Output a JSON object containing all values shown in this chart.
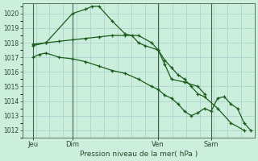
{
  "bg_color": "#cceedd",
  "grid_color_major": "#aacccc",
  "grid_color_minor": "#bbdddd",
  "line_color": "#1a5c1a",
  "xlabel": "Pression niveau de la mer( hPa )",
  "ylim": [
    1011.5,
    1020.7
  ],
  "yticks": [
    1012,
    1013,
    1014,
    1015,
    1016,
    1017,
    1018,
    1019,
    1020
  ],
  "xlim": [
    -0.3,
    17.3
  ],
  "xtick_labels": [
    "Jeu",
    "Dim",
    "Ven",
    "Sam"
  ],
  "xtick_positions": [
    0.5,
    3.5,
    10.0,
    14.0
  ],
  "vline_positions": [
    0.5,
    3.5,
    10.0,
    14.0
  ],
  "series": [
    {
      "x": [
        0.5,
        1.5,
        3.5,
        4.5,
        5.0,
        5.5,
        6.5,
        7.5,
        8.0,
        8.5,
        9.0,
        10.0,
        10.5,
        11.0,
        12.0,
        13.0,
        13.5
      ],
      "y": [
        1017.8,
        1018.0,
        1020.0,
        1020.3,
        1020.5,
        1020.5,
        1019.5,
        1018.6,
        1018.5,
        1018.0,
        1017.8,
        1017.5,
        1016.5,
        1015.5,
        1015.3,
        1015.0,
        1014.5
      ]
    },
    {
      "x": [
        0.5,
        1.5,
        2.5,
        3.5,
        4.5,
        5.5,
        6.5,
        7.5,
        8.5,
        9.5,
        10.0,
        10.5,
        11.0,
        11.5,
        12.0,
        12.5,
        13.0,
        13.5,
        14.5,
        15.5,
        16.5
      ],
      "y": [
        1017.9,
        1018.0,
        1018.1,
        1018.2,
        1018.3,
        1018.4,
        1018.5,
        1018.5,
        1018.5,
        1018.0,
        1017.5,
        1016.8,
        1016.3,
        1015.8,
        1015.5,
        1015.0,
        1014.5,
        1014.3,
        1013.5,
        1012.5,
        1012.0
      ]
    },
    {
      "x": [
        0.5,
        1.0,
        1.5,
        2.5,
        3.5,
        4.5,
        5.5,
        6.5,
        7.5,
        8.5,
        9.5,
        10.0,
        10.5,
        11.0,
        11.5,
        12.0,
        12.5,
        13.0,
        13.5,
        14.0,
        14.5,
        15.0,
        15.5,
        16.0,
        16.5,
        17.0
      ],
      "y": [
        1017.0,
        1017.2,
        1017.3,
        1017.0,
        1016.9,
        1016.7,
        1016.4,
        1016.1,
        1015.9,
        1015.5,
        1015.0,
        1014.8,
        1014.4,
        1014.2,
        1013.8,
        1013.3,
        1013.0,
        1013.2,
        1013.5,
        1013.3,
        1014.2,
        1014.3,
        1013.8,
        1013.5,
        1012.5,
        1012.0
      ]
    }
  ]
}
